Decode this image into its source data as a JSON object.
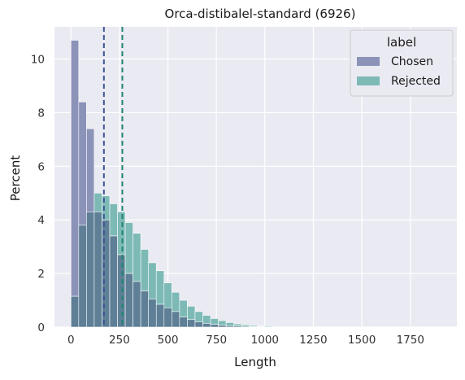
{
  "chart_data": {
    "type": "histogram",
    "title": "Orca-distibalel-standard (6926)",
    "xlabel": "Length",
    "ylabel": "Percent",
    "xlim": [
      -85,
      1990
    ],
    "ylim": [
      0,
      11.2
    ],
    "xticks": [
      0,
      250,
      500,
      750,
      1000,
      1250,
      1500,
      1750
    ],
    "yticks": [
      0,
      2,
      4,
      6,
      8,
      10
    ],
    "grid": true,
    "bin_width": 40,
    "bin_start": 0,
    "legend": {
      "title": "label",
      "placement": "top-right"
    },
    "series": [
      {
        "name": "Chosen",
        "color": "#8C93B8",
        "values": [
          10.7,
          8.4,
          7.4,
          4.3,
          4.0,
          3.4,
          2.7,
          2.0,
          1.7,
          1.35,
          1.05,
          0.85,
          0.72,
          0.58,
          0.38,
          0.28,
          0.2,
          0.14,
          0.1,
          0.07,
          0.05,
          0.04,
          0.03,
          0.02,
          0.02
        ]
      },
      {
        "name": "Rejected",
        "color": "#7DBAB6",
        "values": [
          1.15,
          3.8,
          4.3,
          5.0,
          4.9,
          4.6,
          4.3,
          3.9,
          3.5,
          2.9,
          2.4,
          2.1,
          1.65,
          1.3,
          1.0,
          0.78,
          0.58,
          0.44,
          0.32,
          0.24,
          0.17,
          0.12,
          0.09,
          0.06,
          0.04,
          0.03
        ]
      }
    ],
    "overlap_color": "#5E7F96",
    "mean_lines": [
      {
        "series": "Chosen",
        "value": 170,
        "color": "#3B5594"
      },
      {
        "series": "Rejected",
        "value": 265,
        "color": "#1F8570"
      }
    ]
  }
}
